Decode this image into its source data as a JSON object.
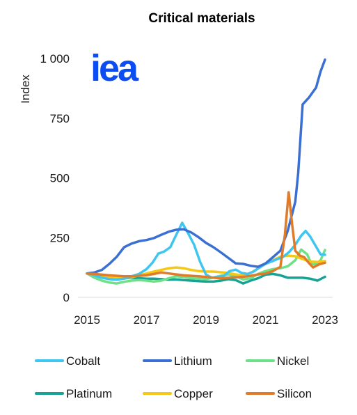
{
  "logo_text": "iea",
  "chart_data": {
    "type": "line",
    "title": "Critical materials",
    "xlabel": "",
    "ylabel": "Index",
    "xlim": [
      2015,
      2023
    ],
    "ylim": [
      0,
      1000
    ],
    "x_ticks": [
      2015,
      2017,
      2019,
      2021,
      2023
    ],
    "x_tick_labels": [
      "2015",
      "2017",
      "2019",
      "2021",
      "2023"
    ],
    "y_ticks": [
      0,
      250,
      500,
      750,
      1000
    ],
    "y_tick_labels": [
      "0",
      "250",
      "500",
      "750",
      "1 000"
    ],
    "grid": false,
    "legend_position": "bottom",
    "series": [
      {
        "name": "Cobalt",
        "color": "#3ec6f0",
        "points": [
          [
            2015.0,
            100
          ],
          [
            2015.25,
            92
          ],
          [
            2015.5,
            82
          ],
          [
            2015.75,
            76
          ],
          [
            2016.0,
            74
          ],
          [
            2016.25,
            78
          ],
          [
            2016.5,
            88
          ],
          [
            2016.75,
            98
          ],
          [
            2017.0,
            118
          ],
          [
            2017.2,
            145
          ],
          [
            2017.4,
            183
          ],
          [
            2017.6,
            192
          ],
          [
            2017.8,
            210
          ],
          [
            2018.0,
            262
          ],
          [
            2018.2,
            312
          ],
          [
            2018.4,
            268
          ],
          [
            2018.6,
            220
          ],
          [
            2018.8,
            150
          ],
          [
            2019.0,
            95
          ],
          [
            2019.2,
            82
          ],
          [
            2019.4,
            85
          ],
          [
            2019.6,
            90
          ],
          [
            2019.8,
            110
          ],
          [
            2020.0,
            116
          ],
          [
            2020.2,
            102
          ],
          [
            2020.4,
            98
          ],
          [
            2020.6,
            108
          ],
          [
            2020.8,
            125
          ],
          [
            2021.0,
            140
          ],
          [
            2021.2,
            150
          ],
          [
            2021.4,
            160
          ],
          [
            2021.6,
            170
          ],
          [
            2021.8,
            190
          ],
          [
            2022.0,
            220
          ],
          [
            2022.2,
            258
          ],
          [
            2022.35,
            278
          ],
          [
            2022.5,
            255
          ],
          [
            2022.7,
            212
          ],
          [
            2022.85,
            180
          ],
          [
            2023.0,
            178
          ]
        ]
      },
      {
        "name": "Lithium",
        "color": "#3a6fd4",
        "points": [
          [
            2015.0,
            100
          ],
          [
            2015.25,
            104
          ],
          [
            2015.5,
            115
          ],
          [
            2015.75,
            140
          ],
          [
            2016.0,
            170
          ],
          [
            2016.25,
            210
          ],
          [
            2016.5,
            225
          ],
          [
            2016.75,
            235
          ],
          [
            2017.0,
            240
          ],
          [
            2017.25,
            248
          ],
          [
            2017.5,
            262
          ],
          [
            2017.75,
            275
          ],
          [
            2018.0,
            283
          ],
          [
            2018.25,
            285
          ],
          [
            2018.5,
            272
          ],
          [
            2018.75,
            252
          ],
          [
            2019.0,
            228
          ],
          [
            2019.25,
            210
          ],
          [
            2019.5,
            188
          ],
          [
            2019.75,
            165
          ],
          [
            2020.0,
            142
          ],
          [
            2020.25,
            140
          ],
          [
            2020.5,
            132
          ],
          [
            2020.75,
            128
          ],
          [
            2021.0,
            142
          ],
          [
            2021.25,
            168
          ],
          [
            2021.5,
            195
          ],
          [
            2021.75,
            280
          ],
          [
            2022.0,
            400
          ],
          [
            2022.1,
            520
          ],
          [
            2022.25,
            808
          ],
          [
            2022.45,
            835
          ],
          [
            2022.7,
            878
          ],
          [
            2022.85,
            945
          ],
          [
            2023.0,
            995
          ]
        ]
      },
      {
        "name": "Nickel",
        "color": "#6ee088",
        "points": [
          [
            2015.0,
            100
          ],
          [
            2015.25,
            82
          ],
          [
            2015.5,
            70
          ],
          [
            2015.75,
            62
          ],
          [
            2016.0,
            58
          ],
          [
            2016.25,
            65
          ],
          [
            2016.5,
            70
          ],
          [
            2016.75,
            72
          ],
          [
            2017.0,
            70
          ],
          [
            2017.25,
            66
          ],
          [
            2017.5,
            70
          ],
          [
            2017.75,
            80
          ],
          [
            2018.0,
            88
          ],
          [
            2018.25,
            85
          ],
          [
            2018.5,
            80
          ],
          [
            2018.75,
            78
          ],
          [
            2019.0,
            76
          ],
          [
            2019.25,
            83
          ],
          [
            2019.5,
            90
          ],
          [
            2019.75,
            96
          ],
          [
            2020.0,
            88
          ],
          [
            2020.25,
            75
          ],
          [
            2020.5,
            80
          ],
          [
            2020.75,
            98
          ],
          [
            2021.0,
            110
          ],
          [
            2021.25,
            118
          ],
          [
            2021.5,
            122
          ],
          [
            2021.75,
            130
          ],
          [
            2022.0,
            155
          ],
          [
            2022.2,
            200
          ],
          [
            2022.4,
            180
          ],
          [
            2022.55,
            138
          ],
          [
            2022.7,
            140
          ],
          [
            2022.85,
            155
          ],
          [
            2023.0,
            198
          ]
        ]
      },
      {
        "name": "Platinum",
        "color": "#14a394",
        "points": [
          [
            2015.0,
            100
          ],
          [
            2015.25,
            90
          ],
          [
            2015.5,
            85
          ],
          [
            2015.75,
            80
          ],
          [
            2016.0,
            78
          ],
          [
            2016.25,
            80
          ],
          [
            2016.5,
            82
          ],
          [
            2016.75,
            80
          ],
          [
            2017.0,
            78
          ],
          [
            2017.25,
            78
          ],
          [
            2017.5,
            76
          ],
          [
            2017.75,
            74
          ],
          [
            2018.0,
            75
          ],
          [
            2018.25,
            72
          ],
          [
            2018.5,
            70
          ],
          [
            2018.75,
            68
          ],
          [
            2019.0,
            66
          ],
          [
            2019.25,
            66
          ],
          [
            2019.5,
            70
          ],
          [
            2019.75,
            76
          ],
          [
            2020.0,
            72
          ],
          [
            2020.25,
            58
          ],
          [
            2020.5,
            70
          ],
          [
            2020.75,
            80
          ],
          [
            2021.0,
            95
          ],
          [
            2021.25,
            98
          ],
          [
            2021.5,
            92
          ],
          [
            2021.75,
            82
          ],
          [
            2022.0,
            82
          ],
          [
            2022.25,
            82
          ],
          [
            2022.5,
            78
          ],
          [
            2022.75,
            70
          ],
          [
            2023.0,
            86
          ]
        ]
      },
      {
        "name": "Copper",
        "color": "#f5c814",
        "points": [
          [
            2015.0,
            100
          ],
          [
            2015.25,
            96
          ],
          [
            2015.5,
            88
          ],
          [
            2015.75,
            82
          ],
          [
            2016.0,
            80
          ],
          [
            2016.25,
            80
          ],
          [
            2016.5,
            84
          ],
          [
            2016.75,
            92
          ],
          [
            2017.0,
            100
          ],
          [
            2017.25,
            108
          ],
          [
            2017.5,
            115
          ],
          [
            2017.75,
            122
          ],
          [
            2018.0,
            125
          ],
          [
            2018.25,
            122
          ],
          [
            2018.5,
            115
          ],
          [
            2018.75,
            110
          ],
          [
            2019.0,
            108
          ],
          [
            2019.25,
            108
          ],
          [
            2019.5,
            105
          ],
          [
            2019.75,
            102
          ],
          [
            2020.0,
            96
          ],
          [
            2020.25,
            92
          ],
          [
            2020.5,
            102
          ],
          [
            2020.75,
            120
          ],
          [
            2021.0,
            140
          ],
          [
            2021.25,
            155
          ],
          [
            2021.5,
            170
          ],
          [
            2021.75,
            175
          ],
          [
            2022.0,
            172
          ],
          [
            2022.25,
            160
          ],
          [
            2022.5,
            150
          ],
          [
            2022.75,
            148
          ],
          [
            2023.0,
            152
          ]
        ]
      },
      {
        "name": "Silicon",
        "color": "#e07b2a",
        "points": [
          [
            2015.0,
            100
          ],
          [
            2015.25,
            98
          ],
          [
            2015.5,
            95
          ],
          [
            2015.75,
            92
          ],
          [
            2016.0,
            90
          ],
          [
            2016.25,
            88
          ],
          [
            2016.5,
            88
          ],
          [
            2016.75,
            90
          ],
          [
            2017.0,
            92
          ],
          [
            2017.25,
            98
          ],
          [
            2017.5,
            104
          ],
          [
            2017.75,
            100
          ],
          [
            2018.0,
            96
          ],
          [
            2018.25,
            92
          ],
          [
            2018.5,
            90
          ],
          [
            2018.75,
            88
          ],
          [
            2019.0,
            85
          ],
          [
            2019.25,
            82
          ],
          [
            2019.5,
            80
          ],
          [
            2019.75,
            82
          ],
          [
            2020.0,
            84
          ],
          [
            2020.25,
            86
          ],
          [
            2020.5,
            90
          ],
          [
            2020.75,
            96
          ],
          [
            2021.0,
            100
          ],
          [
            2021.25,
            110
          ],
          [
            2021.5,
            128
          ],
          [
            2021.65,
            260
          ],
          [
            2021.78,
            440
          ],
          [
            2021.9,
            300
          ],
          [
            2022.0,
            195
          ],
          [
            2022.15,
            175
          ],
          [
            2022.3,
            168
          ],
          [
            2022.45,
            145
          ],
          [
            2022.6,
            125
          ],
          [
            2022.8,
            138
          ],
          [
            2023.0,
            145
          ]
        ]
      }
    ]
  }
}
